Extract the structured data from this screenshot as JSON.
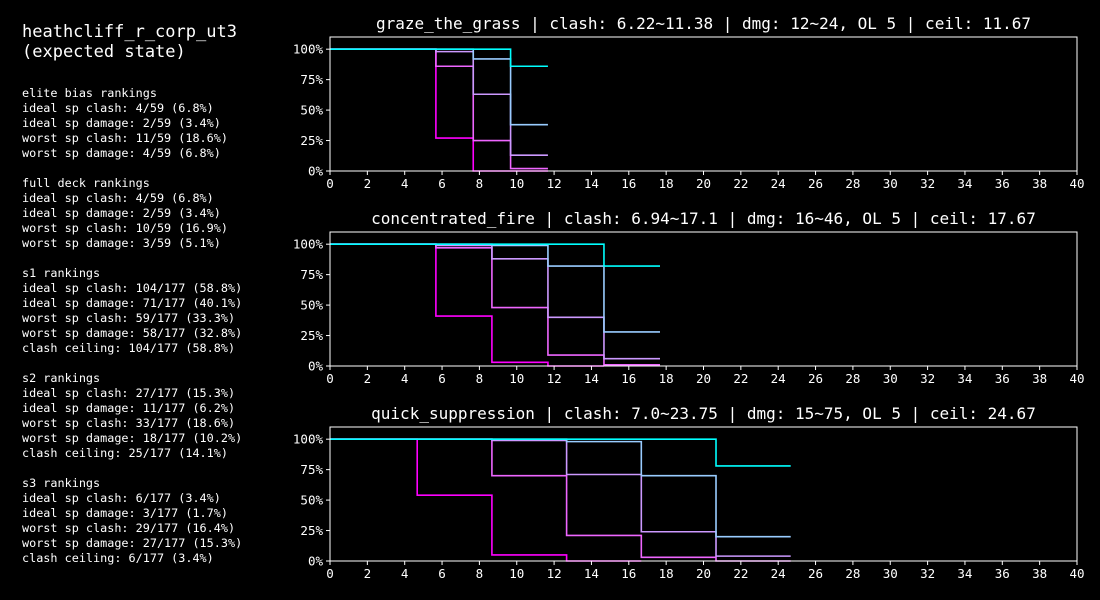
{
  "identity": {
    "title": "heathcliff_r_corp_ut3\n(expected state)"
  },
  "stats_text": "elite bias rankings\nideal sp clash: 4/59 (6.8%)\nideal sp damage: 2/59 (3.4%)\nworst sp clash: 11/59 (18.6%)\nworst sp damage: 4/59 (6.8%)\n\nfull deck rankings\nideal sp clash: 4/59 (6.8%)\nideal sp damage: 2/59 (3.4%)\nworst sp clash: 10/59 (16.9%)\nworst sp damage: 3/59 (5.1%)\n\ns1 rankings\nideal sp clash: 104/177 (58.8%)\nideal sp damage: 71/177 (40.1%)\nworst sp clash: 59/177 (33.3%)\nworst sp damage: 58/177 (32.8%)\nclash ceiling: 104/177 (58.8%)\n\ns2 rankings\nideal sp clash: 27/177 (15.3%)\nideal sp damage: 11/177 (6.2%)\nworst sp clash: 33/177 (18.6%)\nworst sp damage: 18/177 (10.2%)\nclash ceiling: 25/177 (14.1%)\n\ns3 rankings\nideal sp clash: 6/177 (3.4%)\nideal sp damage: 3/177 (1.7%)\nworst sp clash: 29/177 (16.4%)\nworst sp damage: 27/177 (15.3%)\nclash ceiling: 6/177 (3.4%)",
  "chart_data": [
    {
      "type": "line",
      "step": true,
      "title": "graze_the_grass | clash: 6.22~11.38 | dmg: 12~24, OL 5 | ceil: 11.67",
      "xlabel": "",
      "ylabel": "",
      "xlim": [
        0,
        40
      ],
      "ylim": [
        0,
        1.1
      ],
      "xticks": [
        0,
        2,
        4,
        6,
        8,
        10,
        12,
        14,
        16,
        18,
        20,
        22,
        24,
        26,
        28,
        30,
        32,
        34,
        36,
        38,
        40
      ],
      "yticks": [
        0,
        0.25,
        0.5,
        0.75,
        1.0
      ],
      "ytick_labels": [
        "0%",
        "25%",
        "50%",
        "75%",
        "100%"
      ],
      "series": [
        {
          "color": "#ff00ff",
          "x": [
            0,
            5.67,
            5.67,
            7.67,
            7.67,
            11.67
          ],
          "y": [
            1.0,
            1.0,
            0.27,
            0.27,
            0.0,
            0.0
          ]
        },
        {
          "color": "#ee66ff",
          "x": [
            0,
            5.67,
            5.67,
            7.67,
            7.67,
            9.67,
            9.67,
            11.67
          ],
          "y": [
            1.0,
            1.0,
            0.86,
            0.86,
            0.25,
            0.25,
            0.02,
            0.02
          ]
        },
        {
          "color": "#cc99ff",
          "x": [
            0,
            5.67,
            5.67,
            7.67,
            7.67,
            9.67,
            9.67,
            11.67
          ],
          "y": [
            1.0,
            1.0,
            0.98,
            0.98,
            0.63,
            0.63,
            0.13,
            0.13
          ]
        },
        {
          "color": "#99ccff",
          "x": [
            0,
            7.67,
            7.67,
            9.67,
            9.67,
            11.67
          ],
          "y": [
            1.0,
            1.0,
            0.92,
            0.92,
            0.38,
            0.38
          ]
        },
        {
          "color": "#00ffff",
          "x": [
            0,
            9.67,
            9.67,
            11.67
          ],
          "y": [
            1.0,
            1.0,
            0.86,
            0.86
          ]
        }
      ]
    },
    {
      "type": "line",
      "step": true,
      "title": "concentrated_fire | clash: 6.94~17.1 | dmg: 16~46, OL 5 | ceil: 17.67",
      "xlabel": "",
      "ylabel": "",
      "xlim": [
        0,
        40
      ],
      "ylim": [
        0,
        1.1
      ],
      "xticks": [
        0,
        2,
        4,
        6,
        8,
        10,
        12,
        14,
        16,
        18,
        20,
        22,
        24,
        26,
        28,
        30,
        32,
        34,
        36,
        38,
        40
      ],
      "yticks": [
        0,
        0.25,
        0.5,
        0.75,
        1.0
      ],
      "ytick_labels": [
        "0%",
        "25%",
        "50%",
        "75%",
        "100%"
      ],
      "series": [
        {
          "color": "#ff00ff",
          "x": [
            0,
            5.67,
            5.67,
            8.67,
            8.67,
            11.67,
            11.67,
            14.67
          ],
          "y": [
            1.0,
            1.0,
            0.41,
            0.41,
            0.03,
            0.03,
            0.0,
            0.0
          ]
        },
        {
          "color": "#ee66ff",
          "x": [
            0,
            5.67,
            5.67,
            8.67,
            8.67,
            11.67,
            11.67,
            14.67,
            14.67,
            17.67
          ],
          "y": [
            1.0,
            1.0,
            0.97,
            0.97,
            0.48,
            0.48,
            0.09,
            0.09,
            0.01,
            0.01
          ]
        },
        {
          "color": "#cc99ff",
          "x": [
            0,
            5.67,
            5.67,
            8.67,
            8.67,
            11.67,
            11.67,
            14.67,
            14.67,
            17.67
          ],
          "y": [
            1.0,
            1.0,
            0.99,
            0.99,
            0.88,
            0.88,
            0.4,
            0.4,
            0.06,
            0.06
          ]
        },
        {
          "color": "#99ccff",
          "x": [
            0,
            8.67,
            8.67,
            11.67,
            11.67,
            14.67,
            14.67,
            17.67
          ],
          "y": [
            1.0,
            1.0,
            0.99,
            0.99,
            0.82,
            0.82,
            0.28,
            0.28
          ]
        },
        {
          "color": "#00ffff",
          "x": [
            0,
            14.67,
            14.67,
            17.67
          ],
          "y": [
            1.0,
            1.0,
            0.82,
            0.82
          ]
        }
      ]
    },
    {
      "type": "line",
      "step": true,
      "title": "quick_suppression | clash: 7.0~23.75 | dmg: 15~75, OL 5 | ceil: 24.67",
      "xlabel": "",
      "ylabel": "",
      "xlim": [
        0,
        40
      ],
      "ylim": [
        0,
        1.1
      ],
      "xticks": [
        0,
        2,
        4,
        6,
        8,
        10,
        12,
        14,
        16,
        18,
        20,
        22,
        24,
        26,
        28,
        30,
        32,
        34,
        36,
        38,
        40
      ],
      "yticks": [
        0,
        0.25,
        0.5,
        0.75,
        1.0
      ],
      "ytick_labels": [
        "0%",
        "25%",
        "50%",
        "75%",
        "100%"
      ],
      "series": [
        {
          "color": "#ff00ff",
          "x": [
            0,
            4.67,
            4.67,
            8.67,
            8.67,
            12.67,
            12.67,
            16.67
          ],
          "y": [
            1.0,
            1.0,
            0.54,
            0.54,
            0.05,
            0.05,
            0.0,
            0.0
          ]
        },
        {
          "color": "#ee66ff",
          "x": [
            0,
            8.67,
            8.67,
            12.67,
            12.67,
            16.67,
            16.67,
            20.67,
            20.67,
            24.67
          ],
          "y": [
            1.0,
            1.0,
            0.7,
            0.7,
            0.21,
            0.21,
            0.03,
            0.03,
            0.0,
            0.0
          ]
        },
        {
          "color": "#cc99ff",
          "x": [
            0,
            8.67,
            8.67,
            12.67,
            12.67,
            16.67,
            16.67,
            20.67,
            20.67,
            24.67
          ],
          "y": [
            1.0,
            1.0,
            0.99,
            0.99,
            0.71,
            0.71,
            0.24,
            0.24,
            0.04,
            0.04
          ]
        },
        {
          "color": "#99ccff",
          "x": [
            0,
            12.67,
            12.67,
            16.67,
            16.67,
            20.67,
            20.67,
            24.67
          ],
          "y": [
            1.0,
            1.0,
            0.98,
            0.98,
            0.7,
            0.7,
            0.2,
            0.2
          ]
        },
        {
          "color": "#00ffff",
          "x": [
            0,
            20.67,
            20.67,
            24.67
          ],
          "y": [
            1.0,
            1.0,
            0.78,
            0.78
          ]
        }
      ]
    }
  ]
}
